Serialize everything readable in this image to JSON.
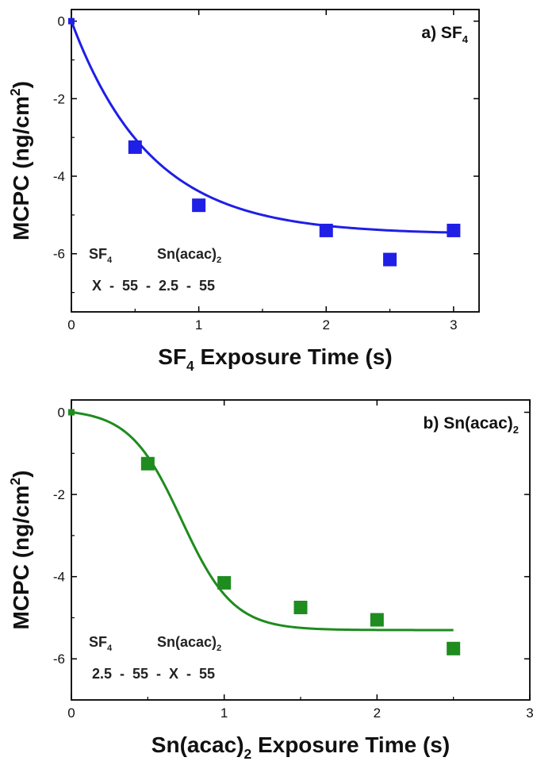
{
  "chart_data": [
    {
      "type": "scatter",
      "panel_label": {
        "prefix": "a) SF",
        "sub": "4"
      },
      "xlabel": {
        "pre": "SF",
        "sub": "4",
        "post": " Exposure Time (s)"
      },
      "ylabel": {
        "pre": "MCPC (ng/cm",
        "sup": "2",
        "post": ")"
      },
      "xlim": [
        0,
        3.2
      ],
      "ylim": [
        -7.5,
        0.3
      ],
      "x_ticks": [
        0,
        1,
        2,
        3
      ],
      "x_tick_labels": [
        "0",
        "1",
        "2",
        "3"
      ],
      "y_ticks": [
        0,
        -2,
        -4,
        -6
      ],
      "y_tick_labels": [
        "0",
        "-2",
        "-4",
        "-6"
      ],
      "marker_color": "#1f1fe6",
      "line_color": "#1f1fe6",
      "series": [
        {
          "x": [
            0,
            0.5,
            1.0,
            2.0,
            2.5,
            3.0
          ],
          "y": [
            0,
            -3.25,
            -4.75,
            -5.4,
            -6.15,
            -5.4
          ]
        }
      ],
      "fit": {
        "kind": "exp",
        "A": -5.5,
        "k": 1.6,
        "x_end": 3.0
      },
      "legend_text": {
        "line1_a": "SF",
        "line1_a_sub": "4",
        "line1_b": "Sn(acac)",
        "line1_b_sub": "2",
        "line2": "X  -  55  -  2.5  -  55"
      }
    },
    {
      "type": "scatter",
      "panel_label": {
        "prefix": "b) Sn(acac)",
        "sub": "2"
      },
      "xlabel": {
        "pre": "Sn(acac)",
        "sub": "2",
        "post": " Exposure Time (s)"
      },
      "ylabel": {
        "pre": "MCPC (ng/cm",
        "sup": "2",
        "post": ")"
      },
      "xlim": [
        0,
        3.0
      ],
      "ylim": [
        -7.0,
        0.3
      ],
      "x_ticks": [
        0,
        1,
        2,
        3
      ],
      "x_tick_labels": [
        "0",
        "1",
        "2",
        "3"
      ],
      "y_ticks": [
        0,
        -2,
        -4,
        -6
      ],
      "y_tick_labels": [
        "0",
        "-2",
        "-4",
        "-6"
      ],
      "marker_color": "#1e8c1e",
      "line_color": "#1e8c1e",
      "series": [
        {
          "x": [
            0,
            0.5,
            1.0,
            1.5,
            2.0,
            2.5
          ],
          "y": [
            0,
            -1.25,
            -4.15,
            -4.75,
            -5.05,
            -5.75
          ]
        }
      ],
      "fit": {
        "kind": "sigmoid",
        "A": -5.3,
        "x0": 0.72,
        "w": 0.17,
        "x_end": 2.5
      },
      "legend_text": {
        "line1_a": "SF",
        "line1_a_sub": "4",
        "line1_b": "Sn(acac)",
        "line1_b_sub": "2",
        "line2": "2.5  -  55  -  X  -  55"
      }
    }
  ]
}
